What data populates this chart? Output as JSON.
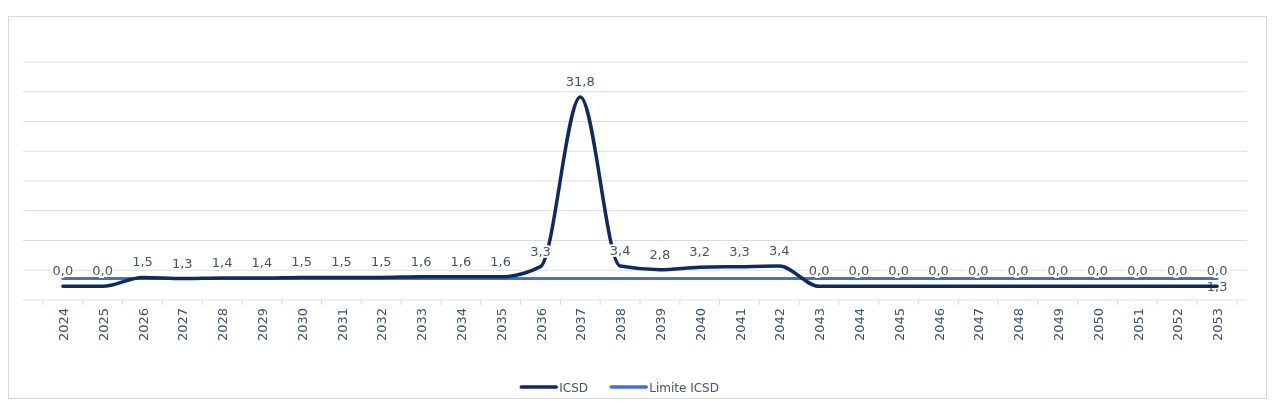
{
  "chart_data": {
    "type": "line",
    "categories": [
      "2024",
      "2025",
      "2026",
      "2027",
      "2028",
      "2029",
      "2030",
      "2031",
      "2032",
      "2033",
      "2034",
      "2035",
      "2036",
      "2037",
      "2038",
      "2039",
      "2040",
      "2041",
      "2042",
      "2043",
      "2044",
      "2045",
      "2046",
      "2047",
      "2048",
      "2049",
      "2050",
      "2051",
      "2052",
      "2053"
    ],
    "series": [
      {
        "name": "ICSD",
        "color": "#0e2a63",
        "values": [
          0,
          0,
          1.5,
          1.3,
          1.4,
          1.4,
          1.5,
          1.5,
          1.5,
          1.6,
          1.6,
          1.6,
          3.3,
          31.8,
          3.4,
          2.8,
          3.2,
          3.3,
          3.4,
          0,
          0,
          0,
          0,
          0,
          0,
          0,
          0,
          0,
          0,
          0
        ],
        "value_labels": [
          "0,0",
          "0,0",
          "1,5",
          "1,3",
          "1,4",
          "1,4",
          "1,5",
          "1,5",
          "1,5",
          "1,6",
          "1,6",
          "1,6",
          "3,3",
          "31,8",
          "3,4",
          "2,8",
          "3,2",
          "3,3",
          "3,4",
          "0,0",
          "0,0",
          "0,0",
          "0,0",
          "0,0",
          "0,0",
          "0,0",
          "0,0",
          "0,0",
          "0,0",
          "0,0"
        ]
      },
      {
        "name": "Limite ICSD",
        "color": "#4472c4",
        "values": [
          1.3,
          1.3,
          1.3,
          1.3,
          1.3,
          1.3,
          1.3,
          1.3,
          1.3,
          1.3,
          1.3,
          1.3,
          1.3,
          1.3,
          1.3,
          1.3,
          1.3,
          1.3,
          1.3,
          1.3,
          1.3,
          1.3,
          1.3,
          1.3,
          1.3,
          1.3,
          1.3,
          1.3,
          1.3,
          1.3
        ],
        "value_labels": [
          null,
          null,
          null,
          null,
          null,
          null,
          null,
          null,
          null,
          null,
          null,
          null,
          null,
          null,
          null,
          null,
          null,
          null,
          null,
          null,
          null,
          null,
          null,
          null,
          null,
          null,
          null,
          null,
          null,
          "1,3"
        ]
      }
    ],
    "ylim": [
      -2.3,
      37.7
    ],
    "yticks": [
      {
        "value": -2.3,
        "label": null
      },
      {
        "value": 2.7,
        "label": null
      },
      {
        "value": 7.7,
        "label": null
      },
      {
        "value": 12.7,
        "label": null
      },
      {
        "value": 17.7,
        "label": null
      },
      {
        "value": 22.7,
        "label": null
      },
      {
        "value": 27.7,
        "label": null
      },
      {
        "value": 32.7,
        "label": null
      },
      {
        "value": 37.7,
        "label": null
      }
    ],
    "grid": "y",
    "legend": "bottom",
    "tick_labels": "x",
    "marker": "none",
    "line_style": "solid"
  }
}
